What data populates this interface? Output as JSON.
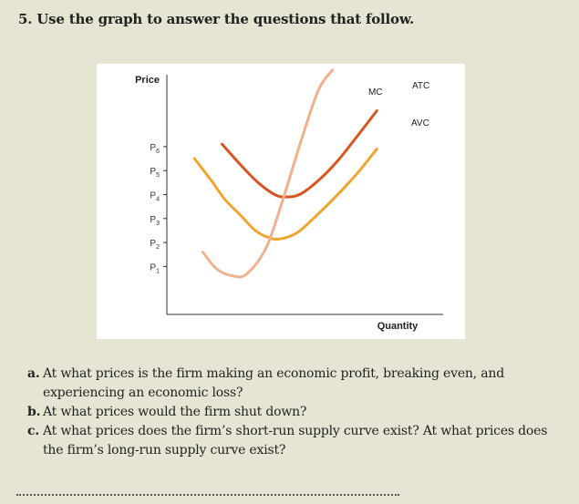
{
  "heading": "5. Use the graph to answer the questions that follow.",
  "chart_data": {
    "type": "line",
    "ylabel": "Price",
    "xlabel": "Quantity",
    "y_ticks": [
      "P1",
      "P2",
      "P3",
      "P4",
      "P5",
      "P6"
    ],
    "y_tick_values": [
      1,
      2,
      3,
      4,
      5,
      6
    ],
    "xlim": [
      0,
      10
    ],
    "ylim": [
      -1,
      9
    ],
    "grid": false,
    "series": [
      {
        "name": "MC",
        "color": "#f2b08d",
        "x": [
          1.3,
          1.8,
          2.4,
          2.9,
          3.6,
          4.2,
          4.9,
          5.5,
          6.0
        ],
        "y": [
          1.6,
          0.9,
          0.6,
          0.7,
          1.8,
          3.8,
          6.4,
          8.4,
          9.2
        ]
      },
      {
        "name": "ATC",
        "color": "#d9551f",
        "x": [
          2.0,
          2.7,
          3.3,
          3.9,
          4.3,
          4.8,
          5.4,
          6.1,
          6.8,
          7.6
        ],
        "y": [
          6.1,
          5.2,
          4.5,
          4.0,
          3.9,
          4.0,
          4.5,
          5.3,
          6.3,
          7.5
        ]
      },
      {
        "name": "AVC",
        "color": "#f2a430",
        "x": [
          1.0,
          1.6,
          2.1,
          2.7,
          3.2,
          3.7,
          4.1,
          4.7,
          5.3,
          6.1,
          6.9,
          7.6
        ],
        "y": [
          5.5,
          4.6,
          3.8,
          3.1,
          2.5,
          2.2,
          2.15,
          2.4,
          3.0,
          3.9,
          4.9,
          5.9
        ]
      }
    ]
  },
  "questions": [
    {
      "id": "a.",
      "text": "At what prices is the firm making an economic profit, breaking even, and experiencing an economic loss?"
    },
    {
      "id": "b.",
      "text": "At what prices would the firm shut down?"
    },
    {
      "id": "c.",
      "text": "At what prices does the firm’s short-run supply curve exist? At what prices does the firm’s long-run supply curve exist?"
    }
  ]
}
